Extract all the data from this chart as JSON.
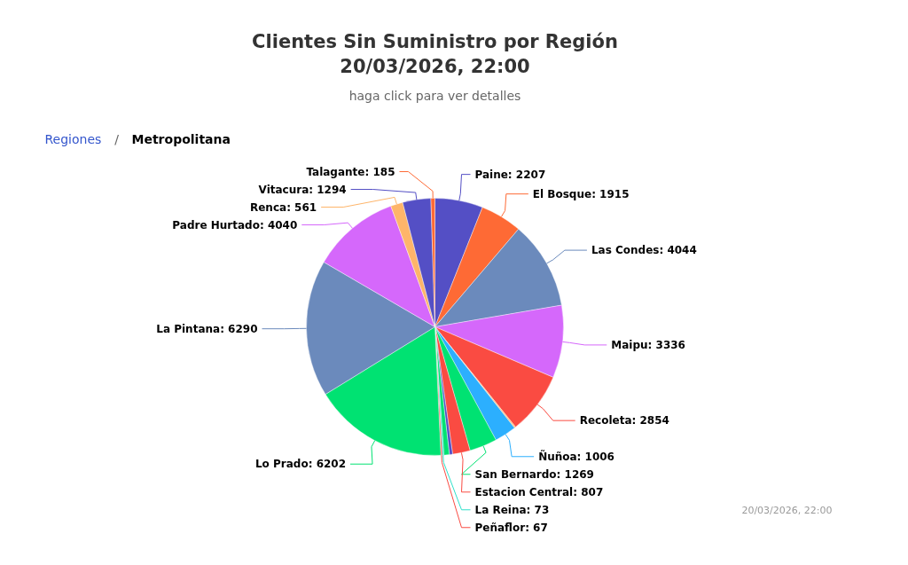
{
  "chart_data": {
    "type": "pie",
    "title": "Clientes Sin Suministro por Región\n20/03/2026, 22:00",
    "subtitle": "haga click para ver detalles",
    "annotations": [
      "Regiones",
      "/",
      "Metropolitana",
      "20/03/2026, 22:00"
    ],
    "value_labels": [
      "2207",
      "1915",
      "4044",
      "3336",
      "2854",
      null,
      "1006",
      "1269",
      "807",
      null,
      null,
      "73",
      "67",
      "6202",
      "6290",
      "4040",
      "561",
      "1294",
      "185"
    ],
    "categories": [
      "Paine",
      "El Bosque",
      "Las Condes",
      "Maipu",
      "Recoleta",
      null,
      "Ñuñoa",
      "San Bernardo",
      "Estacion Central",
      null,
      null,
      "La Reina",
      "Peñaflor",
      "Lo Prado",
      "La Pintana",
      "Padre Hurtado",
      "Renca",
      "Vitacura",
      "Talagante"
    ],
    "values": [
      2207,
      1915,
      4044,
      3336,
      2854,
      60,
      1006,
      1269,
      807,
      150,
      250,
      73,
      67,
      6202,
      6290,
      4040,
      561,
      1294,
      185
    ],
    "colors": [
      "#544fc5",
      "#fe6a35",
      "#6b8abc",
      "#d568fb",
      "#fa4b42",
      "#feb56a",
      "#2caffe",
      "#00e272",
      "#fa4b42",
      "#544fc5",
      "#00e272",
      "#2ee0ca",
      "#fa4b42",
      "#00e272",
      "#6b8abc",
      "#d568fb",
      "#feb56a",
      "#544fc5",
      "#fe6a35"
    ]
  }
}
